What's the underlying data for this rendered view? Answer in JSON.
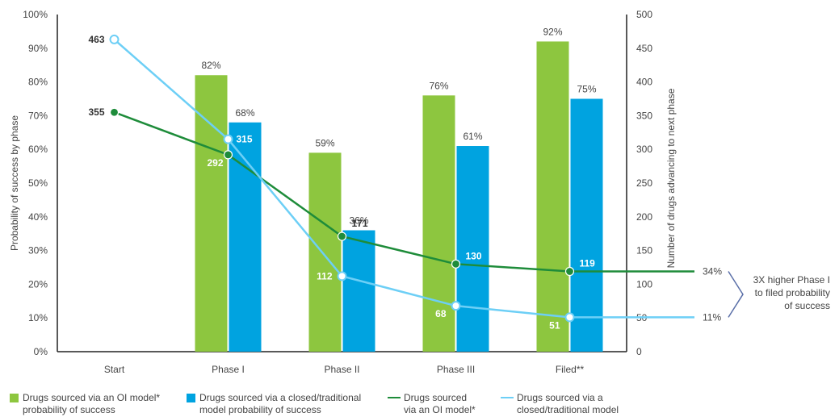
{
  "chart_data": {
    "type": "bar",
    "categories": [
      "Start",
      "Phase I",
      "Phase II",
      "Phase III",
      "Filed**"
    ],
    "left_axis": {
      "label": "Probability of success by phase",
      "range": [
        0,
        100
      ],
      "ticks": [
        "0%",
        "10%",
        "20%",
        "30%",
        "40%",
        "50%",
        "60%",
        "70%",
        "80%",
        "90%",
        "100%"
      ]
    },
    "right_axis": {
      "label": "Number of drugs advancing to next phase",
      "range": [
        0,
        500
      ],
      "ticks": [
        "0",
        "50",
        "100",
        "150",
        "200",
        "250",
        "300",
        "350",
        "400",
        "450",
        "500"
      ]
    },
    "bar_series": [
      {
        "name": "Drugs sourced via an OI model* probability of success",
        "color": "#8dc63f",
        "values": [
          null,
          82,
          59,
          76,
          92
        ],
        "labels": [
          "",
          "82%",
          "59%",
          "76%",
          "92%"
        ]
      },
      {
        "name": "Drugs sourced via a closed/traditional model probability of success",
        "color": "#00a3e0",
        "values": [
          null,
          68,
          36,
          61,
          75
        ],
        "labels": [
          "",
          "68%",
          "36%",
          "61%",
          "75%"
        ]
      }
    ],
    "line_series": [
      {
        "name": "Drugs sourced via an OI model*",
        "color": "#1e8c3a",
        "values": [
          355,
          292,
          171,
          130,
          119
        ],
        "labels": [
          "355",
          "292",
          "171",
          "130",
          "119"
        ]
      },
      {
        "name": "Drugs sourced via a closed/traditional model",
        "color": "#6dcff6",
        "values": [
          463,
          315,
          112,
          68,
          51
        ],
        "labels": [
          "463",
          "315",
          "112",
          "68",
          "51"
        ]
      }
    ],
    "end_labels": [
      "34%",
      "11%"
    ],
    "annotation": "3X higher Phase I\nto filed probability\nof success",
    "grid": false,
    "legend_position": "bottom"
  },
  "legend": [
    {
      "label": "Drugs sourced via an OI model*\nprobability of success",
      "color": "#8dc63f"
    },
    {
      "label": "Drugs sourced via a closed/traditional\nmodel probability of success",
      "color": "#00a3e0"
    },
    {
      "label": "Drugs sourced\nvia an OI model*",
      "color": "#1e8c3a"
    },
    {
      "label": "Drugs sourced via a\nclosed/traditional model",
      "color": "#6dcff6"
    }
  ]
}
